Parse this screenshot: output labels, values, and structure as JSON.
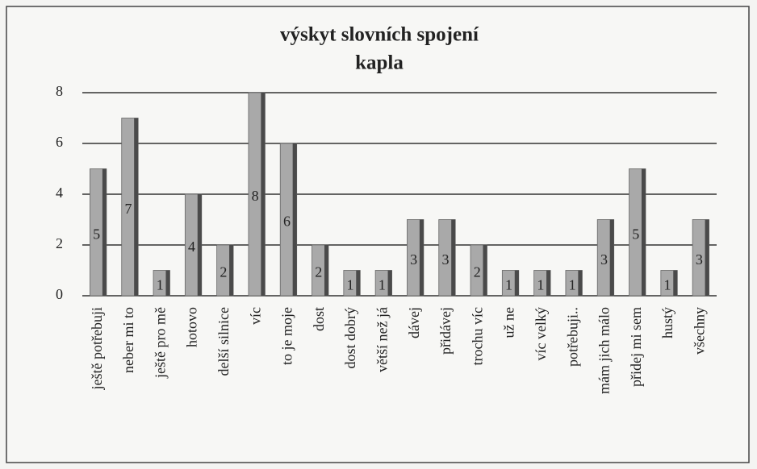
{
  "chart_data": {
    "type": "bar",
    "title": "výskyt slovních spojení",
    "subtitle": "kapla",
    "categories": [
      "ještě potřebuji",
      "neber mi to",
      "ještě pro mě",
      "hotovo",
      "delší silnice",
      "víc",
      "to je moje",
      "dost",
      "dost dobrý",
      "větší než já",
      "dávej",
      "přidávej",
      "trochu víc",
      "už ne",
      "víc velký",
      "potřebuji..",
      "mám jich málo",
      "přidej mi sem",
      "hustý",
      "všechny"
    ],
    "values": [
      5,
      7,
      1,
      4,
      2,
      8,
      6,
      2,
      1,
      1,
      3,
      3,
      2,
      1,
      1,
      1,
      3,
      5,
      1,
      3
    ],
    "color": "#a9a9a9",
    "ylim": [
      0,
      8
    ],
    "yticks": [
      0,
      2,
      4,
      6,
      8
    ],
    "grid": true
  }
}
